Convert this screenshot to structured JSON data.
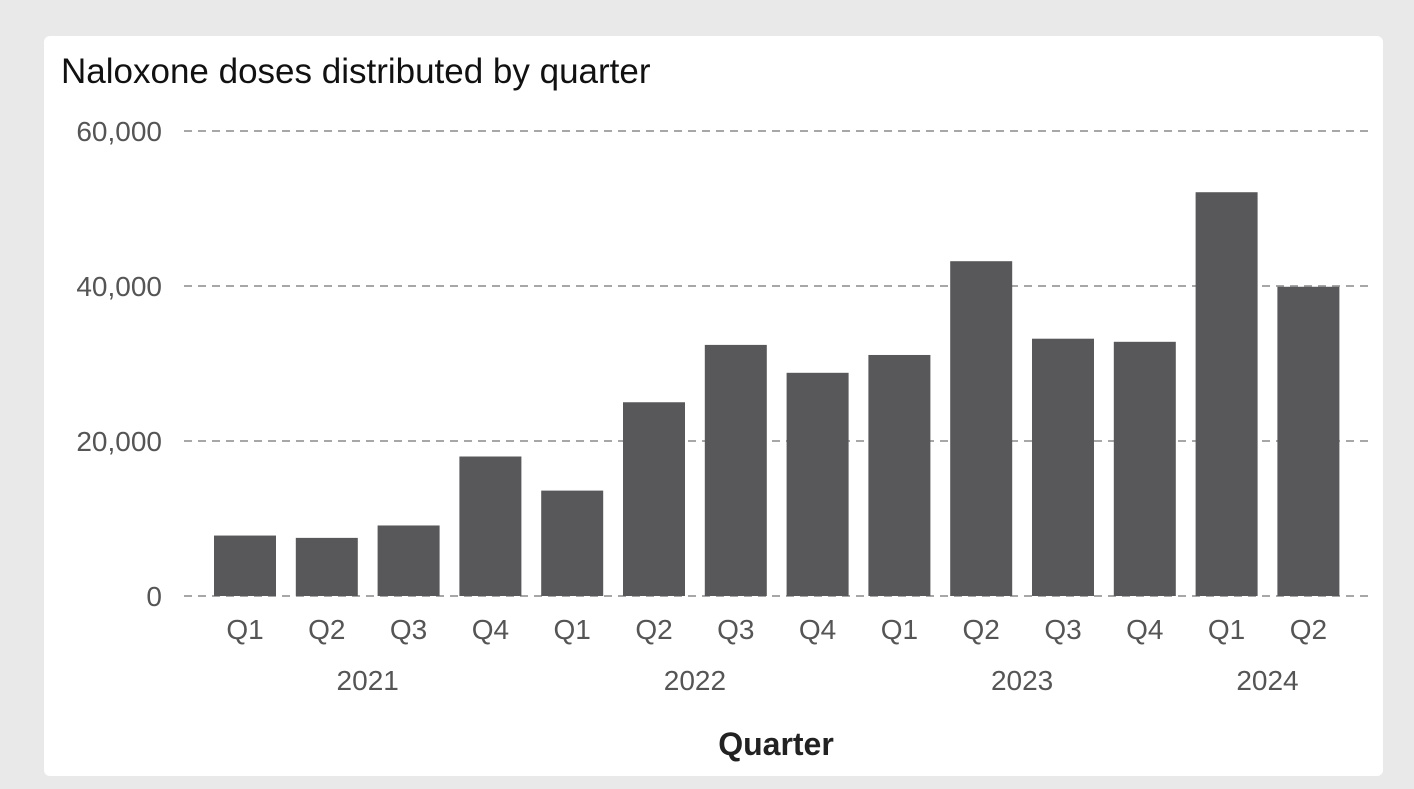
{
  "chart_data": {
    "type": "bar",
    "title": "Naloxone doses distributed by quarter",
    "xlabel": "Quarter",
    "ylabel": "",
    "ylim": [
      0,
      60000
    ],
    "yticks": [
      "0",
      "20,000",
      "40,000",
      "60,000"
    ],
    "grid": true,
    "categories": [
      "Q1",
      "Q2",
      "Q3",
      "Q4",
      "Q1",
      "Q2",
      "Q3",
      "Q4",
      "Q1",
      "Q2",
      "Q3",
      "Q4",
      "Q1",
      "Q2"
    ],
    "years": [
      {
        "label": "2021",
        "start": 0,
        "end": 3
      },
      {
        "label": "2022",
        "start": 4,
        "end": 7
      },
      {
        "label": "2023",
        "start": 8,
        "end": 11
      },
      {
        "label": "2024",
        "start": 12,
        "end": 13
      }
    ],
    "values": [
      7800,
      7500,
      9100,
      18000,
      13600,
      25000,
      32400,
      28800,
      31100,
      43200,
      33200,
      32800,
      52100,
      39900
    ],
    "bar_color": "#58585a"
  }
}
